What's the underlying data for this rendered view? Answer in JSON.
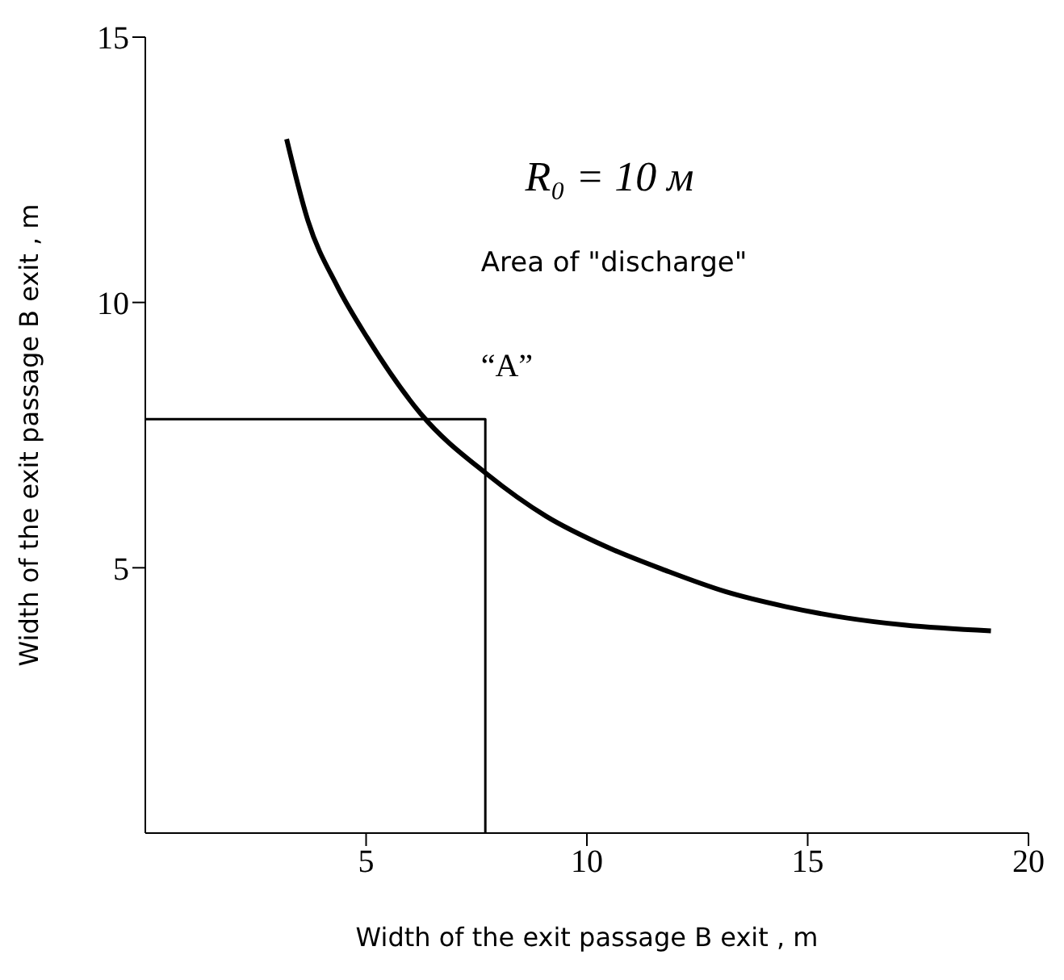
{
  "chart_data": {
    "type": "line",
    "xlabel": "Width of the exit passage B exit , m",
    "ylabel": "Width of the exit passage B exit , m",
    "series": [
      {
        "color": "#000000",
        "x": [
          3.2,
          3.68,
          4.35,
          5.03,
          6.24,
          7.73,
          9.08,
          10.43,
          11.78,
          13.14,
          14.49,
          15.84,
          17.19,
          19.15
        ],
        "values": [
          13.08,
          11.55,
          10.3,
          9.33,
          7.9,
          6.77,
          5.97,
          5.4,
          4.95,
          4.55,
          4.27,
          4.06,
          3.92,
          3.81
        ]
      },
      {
        "color": "#000000",
        "x": [
          0,
          7.7,
          7.7
        ],
        "values": [
          7.8,
          7.8,
          0
        ]
      }
    ],
    "xlim": [
      0,
      20
    ],
    "xticks": [
      5,
      10,
      15,
      20
    ],
    "ylim": [
      0,
      15
    ],
    "yticks": [
      5,
      10,
      15
    ],
    "annotations": [
      "R₀ = 10 м",
      "Area of \"discharge\"",
      "“A”"
    ],
    "marker": "none",
    "line_style": "solid"
  }
}
